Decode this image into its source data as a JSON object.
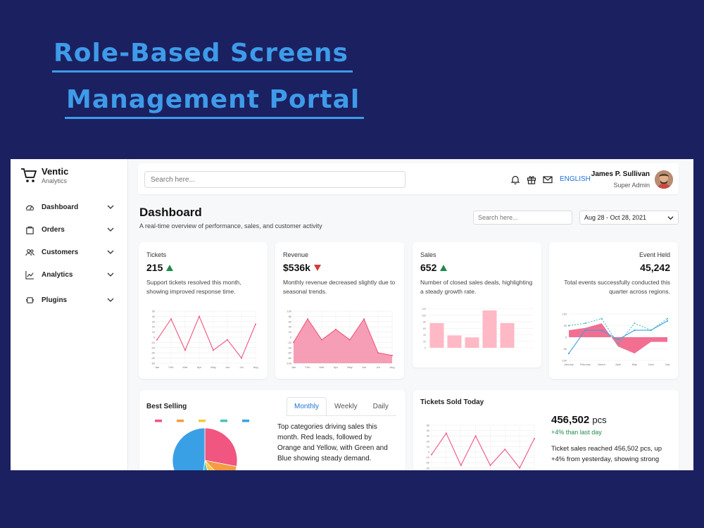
{
  "hero": {
    "line1": "Role-Based Screens",
    "line2": "Management Portal"
  },
  "brand": {
    "name": "Ventic",
    "subtitle": "Analytics"
  },
  "sidebar": {
    "items": [
      {
        "label": "Dashboard",
        "icon": "gauge-icon"
      },
      {
        "label": "Orders",
        "icon": "bag-icon"
      },
      {
        "label": "Customers",
        "icon": "users-icon"
      },
      {
        "label": "Analytics",
        "icon": "trend-icon"
      },
      {
        "label": "Plugins",
        "icon": "plugin-icon"
      }
    ]
  },
  "topbar": {
    "search_placeholder": "Search here...",
    "language": "ENGLISH",
    "user_name": "James P. Sullivan",
    "user_role": "Super Admin"
  },
  "header": {
    "title": "Dashboard",
    "subtitle": "A real-time overview of performance, sales, and customer activity",
    "search_placeholder": "Search here...",
    "date_range": "Aug 28 - Oct 28, 2021"
  },
  "kpis": [
    {
      "title": "Tickets",
      "value": "215",
      "trend": "up",
      "description": "Support tickets resolved this month, showing improved response time."
    },
    {
      "title": "Revenue",
      "value": "$536k",
      "trend": "down",
      "description": "Monthly revenue decreased slightly due to seasonal trends."
    },
    {
      "title": "Sales",
      "value": "652",
      "trend": "up",
      "description": "Number of closed sales deals, highlighting a steady growth rate."
    },
    {
      "title": "Event Held",
      "value": "45,242",
      "trend": "none",
      "description": "Total events successfully conducted this quarter across regions."
    }
  ],
  "best_selling": {
    "title": "Best Selling",
    "tabs": [
      "Monthly",
      "Weekly",
      "Daily"
    ],
    "active_tab": "Monthly",
    "description": "Top categories driving sales this month. Red leads, followed by Orange and Yellow, with Green and Blue showing steady demand."
  },
  "tickets_sold": {
    "title": "Tickets Sold Today",
    "value": "456,502",
    "unit": "pcs",
    "delta": "+4% than last day",
    "description": "Ticket sales reached 456,502 pcs, up +4% from yesterday, showing strong"
  },
  "colors": {
    "accent": "#1b72d6",
    "pink": "#f0567f",
    "pink_fill": "#f58da8",
    "blue": "#3aa0e6",
    "up": "#1f8a4c",
    "down": "#d33b3b"
  },
  "chart_data": [
    {
      "type": "line",
      "x": [
        "Jan",
        "Feb",
        "Mar",
        "Apr",
        "May",
        "Jun",
        "Jul",
        "Aug"
      ],
      "series": [
        {
          "values": [
            -5,
            35,
            -25,
            40,
            -25,
            -5,
            -40,
            25
          ]
        }
      ],
      "ylim": [
        -50,
        50
      ],
      "yticks": [
        -50,
        -40,
        -30,
        -20,
        -10,
        0,
        10,
        20,
        30,
        40,
        50
      ]
    },
    {
      "type": "area",
      "x": [
        "Jan",
        "Feb",
        "Mar",
        "Apr",
        "May",
        "Jun",
        "Jul",
        "Aug"
      ],
      "series": [
        {
          "values": [
            -20,
            70,
            -10,
            30,
            -10,
            70,
            -60,
            -70
          ]
        }
      ],
      "ylim": [
        -100,
        100
      ],
      "yticks": [
        -100,
        -80,
        -60,
        -40,
        -20,
        0,
        20,
        40,
        60,
        80,
        100
      ]
    },
    {
      "type": "bar",
      "categories": [
        "1",
        "2",
        "3",
        "4",
        "5",
        "6"
      ],
      "values": [
        76,
        38,
        32,
        115,
        76,
        0
      ],
      "ylim": [
        0,
        130
      ]
    },
    {
      "type": "line",
      "x": [
        "January",
        "February",
        "March",
        "April",
        "May",
        "June",
        "July"
      ],
      "ylim": [
        -100,
        100
      ],
      "series": [
        {
          "type": "line",
          "values": [
            -70,
            30,
            30,
            -10,
            30,
            30,
            70
          ]
        },
        {
          "type": "line",
          "dashed": true,
          "values": [
            50,
            60,
            80,
            -30,
            60,
            30,
            80
          ]
        },
        {
          "type": "area",
          "values": [
            30,
            40,
            60,
            -40,
            -70,
            -20,
            -20
          ]
        }
      ]
    },
    {
      "type": "pie",
      "values": [
        28,
        10,
        8,
        6,
        48
      ]
    },
    {
      "type": "line",
      "x": [
        "Jan",
        "Feb",
        "Mar",
        "Apr",
        "May",
        "Jun",
        "Jul",
        "Aug"
      ],
      "series": [
        {
          "values": [
            -5,
            35,
            -25,
            30,
            -25,
            5,
            -30,
            25
          ]
        }
      ],
      "ylim": [
        -50,
        50
      ],
      "yticks": [
        -50,
        -40,
        -30,
        -20,
        -10,
        0,
        10,
        20,
        30,
        40,
        50
      ]
    }
  ]
}
